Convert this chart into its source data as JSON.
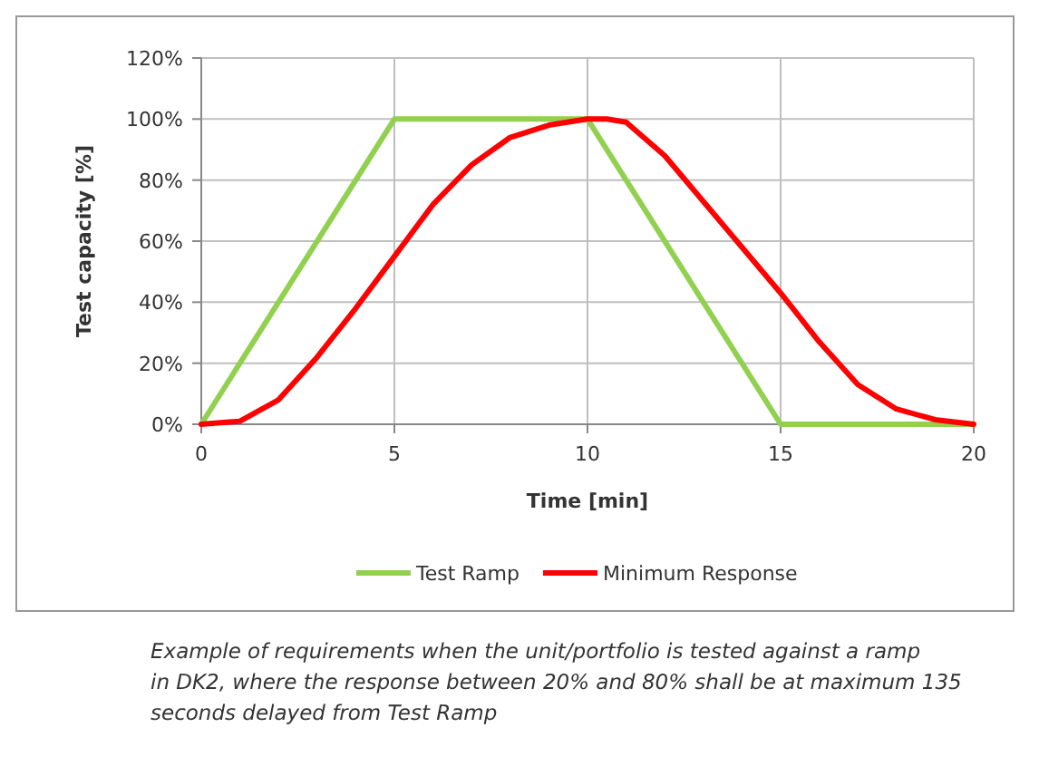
{
  "chart_data": {
    "type": "line",
    "xlabel": "Time [min]",
    "ylabel": "Test capacity [%]",
    "xlim": [
      0,
      20
    ],
    "xticks": [
      0,
      5,
      10,
      15,
      20
    ],
    "ylim": [
      0,
      120
    ],
    "yticks": [
      {
        "value": 0,
        "label": "0%"
      },
      {
        "value": 20,
        "label": "20%"
      },
      {
        "value": 40,
        "label": "40%"
      },
      {
        "value": 60,
        "label": "60%"
      },
      {
        "value": 80,
        "label": "80%"
      },
      {
        "value": 100,
        "label": "100%"
      },
      {
        "value": 120,
        "label": "120%"
      }
    ],
    "grid": true,
    "legend": "bottom",
    "marker": "none",
    "line_style": "solid",
    "series": [
      {
        "name": "Test Ramp",
        "color": "#92d050",
        "x": [
          0,
          5,
          10,
          15,
          20
        ],
        "values": [
          0,
          100,
          100,
          0,
          0
        ]
      },
      {
        "name": "Minimum Response",
        "color": "#ff0000",
        "x": [
          0,
          1,
          2,
          3,
          4,
          5,
          6,
          7,
          8,
          9,
          10,
          10.5,
          11,
          12,
          13,
          14,
          15,
          16,
          17,
          18,
          19,
          20
        ],
        "values": [
          0,
          1,
          8,
          22,
          38,
          55,
          72,
          85,
          94,
          98,
          100,
          100,
          99,
          88,
          73,
          58,
          43,
          27,
          13,
          5,
          1.5,
          0
        ]
      }
    ],
    "annotations": [
      "Example of requirements when the unit/portfolio is tested against a ramp in DK2, where the response between 20% and 80% shall be at maximum 135 seconds delayed from Test Ramp"
    ]
  }
}
